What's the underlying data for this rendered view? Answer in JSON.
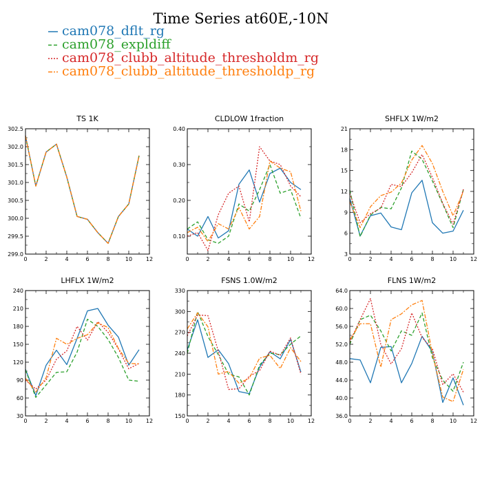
{
  "figure_title": "Time Series at60E,-10N",
  "legend": [
    {
      "label": "cam078_dflt_rg",
      "color": "#1f77b4",
      "dash": "solid"
    },
    {
      "label": "cam078_expldiff",
      "color": "#2ca02c",
      "dash": "dash"
    },
    {
      "label": "cam078_clubb_altitude_thresholdm_rg",
      "color": "#d62728",
      "dash": "dot"
    },
    {
      "label": "cam078_clubb_altitude_thresholdp_rg",
      "color": "#ff7f0e",
      "dash": "dashdot"
    }
  ],
  "chart_data": [
    {
      "type": "line",
      "title": "TS   1K",
      "x": [
        0,
        1,
        2,
        3,
        4,
        5,
        6,
        7,
        8,
        9,
        10,
        11
      ],
      "xlim": [
        0,
        12
      ],
      "xticks": [
        "0",
        "2",
        "4",
        "6",
        "8",
        "10",
        "12"
      ],
      "ylim": [
        299.0,
        302.5
      ],
      "yticks": [
        "299.0",
        "299.5",
        "300.0",
        "300.5",
        "301.0",
        "301.5",
        "302.0",
        "302.5"
      ],
      "series": [
        {
          "name": "cam078_dflt_rg",
          "values": [
            302.3,
            300.9,
            301.85,
            302.07,
            301.15,
            300.05,
            299.97,
            299.6,
            299.3,
            300.05,
            300.4,
            301.75
          ]
        },
        {
          "name": "cam078_expldiff",
          "values": [
            302.3,
            300.9,
            301.85,
            302.07,
            301.15,
            300.05,
            299.97,
            299.6,
            299.3,
            300.05,
            300.4,
            301.75
          ]
        },
        {
          "name": "cam078_clubb_altitude_thresholdm_rg",
          "values": [
            302.3,
            300.9,
            301.85,
            302.07,
            301.15,
            300.05,
            299.97,
            299.6,
            299.3,
            300.05,
            300.4,
            301.75
          ]
        },
        {
          "name": "cam078_clubb_altitude_thresholdp_rg",
          "values": [
            302.3,
            300.9,
            301.85,
            302.07,
            301.15,
            300.05,
            299.97,
            299.6,
            299.3,
            300.05,
            300.4,
            301.75
          ]
        }
      ]
    },
    {
      "type": "line",
      "title": "CLDLOW   1fraction",
      "x": [
        0,
        1,
        2,
        3,
        4,
        5,
        6,
        7,
        8,
        9,
        10,
        11
      ],
      "xlim": [
        0,
        12
      ],
      "xticks": [
        "0",
        "2",
        "4",
        "6",
        "8",
        "10",
        "12"
      ],
      "ylim": [
        0.05,
        0.4
      ],
      "yticks": [
        "0.10",
        "0.20",
        "0.30",
        "0.40"
      ],
      "ytick_values": [
        0.1,
        0.2,
        0.3,
        0.4
      ],
      "series": [
        {
          "name": "cam078_dflt_rg",
          "values": [
            0.12,
            0.1,
            0.155,
            0.095,
            0.115,
            0.245,
            0.285,
            0.195,
            0.275,
            0.29,
            0.25,
            0.23
          ]
        },
        {
          "name": "cam078_expldiff",
          "values": [
            0.12,
            0.14,
            0.09,
            0.08,
            0.1,
            0.19,
            0.17,
            0.23,
            0.3,
            0.22,
            0.23,
            0.15
          ]
        },
        {
          "name": "cam078_clubb_altitude_thresholdm_rg",
          "values": [
            0.1,
            0.11,
            0.06,
            0.16,
            0.22,
            0.24,
            0.14,
            0.35,
            0.31,
            0.3,
            0.24,
            0.21
          ]
        },
        {
          "name": "cam078_clubb_altitude_thresholdp_rg",
          "values": [
            0.11,
            0.125,
            0.085,
            0.135,
            0.12,
            0.18,
            0.12,
            0.155,
            0.31,
            0.29,
            0.28,
            0.17
          ]
        }
      ]
    },
    {
      "type": "line",
      "title": "SHFLX   1W/m2",
      "x": [
        0,
        1,
        2,
        3,
        4,
        5,
        6,
        7,
        8,
        9,
        10,
        11
      ],
      "xlim": [
        0,
        12
      ],
      "xticks": [
        "0",
        "2",
        "4",
        "6",
        "8",
        "10",
        "12"
      ],
      "ylim": [
        3,
        21
      ],
      "yticks": [
        "3",
        "6",
        "9",
        "12",
        "15",
        "18",
        "21"
      ],
      "series": [
        {
          "name": "cam078_dflt_rg",
          "values": [
            11.0,
            5.6,
            8.5,
            8.9,
            6.9,
            6.5,
            11.8,
            13.6,
            7.5,
            6.0,
            6.3,
            9.3
          ]
        },
        {
          "name": "cam078_expldiff",
          "values": [
            12.2,
            5.5,
            8.6,
            9.7,
            9.5,
            12.5,
            17.8,
            16.6,
            13.5,
            10.2,
            6.8,
            12.3
          ]
        },
        {
          "name": "cam078_clubb_altitude_thresholdm_rg",
          "values": [
            11.7,
            7.5,
            8.8,
            9.6,
            13.0,
            12.7,
            14.7,
            17.3,
            14.0,
            10.3,
            7.3,
            12.3
          ]
        },
        {
          "name": "cam078_clubb_altitude_thresholdp_rg",
          "values": [
            10.5,
            6.8,
            9.8,
            11.4,
            11.9,
            13.2,
            16.5,
            18.6,
            16.0,
            12.0,
            8.5,
            12.0
          ]
        }
      ]
    },
    {
      "type": "line",
      "title": "LHFLX   1W/m2",
      "x": [
        0,
        1,
        2,
        3,
        4,
        5,
        6,
        7,
        8,
        9,
        10,
        11
      ],
      "xlim": [
        0,
        12
      ],
      "xticks": [
        "0",
        "2",
        "4",
        "6",
        "8",
        "10",
        "12"
      ],
      "ylim": [
        30,
        240
      ],
      "yticks": [
        "30",
        "60",
        "90",
        "120",
        "150",
        "180",
        "210",
        "240"
      ],
      "series": [
        {
          "name": "cam078_dflt_rg",
          "values": [
            108,
            64,
            115,
            140,
            116,
            160,
            206,
            210,
            182,
            162,
            115,
            141
          ]
        },
        {
          "name": "cam078_expldiff",
          "values": [
            107,
            61,
            82,
            103,
            104,
            137,
            192,
            180,
            158,
            128,
            90,
            88
          ]
        },
        {
          "name": "cam078_clubb_altitude_thresholdm_rg",
          "values": [
            90,
            75,
            90,
            125,
            139,
            180,
            157,
            188,
            170,
            142,
            109,
            118
          ]
        },
        {
          "name": "cam078_clubb_altitude_thresholdp_rg",
          "values": [
            93,
            70,
            94,
            160,
            150,
            160,
            166,
            186,
            178,
            143,
            118,
            117
          ]
        }
      ]
    },
    {
      "type": "line",
      "title": "FSNS   1.0W/m2",
      "x": [
        0,
        1,
        2,
        3,
        4,
        5,
        6,
        7,
        8,
        9,
        10,
        11
      ],
      "xlim": [
        0,
        12
      ],
      "xticks": [
        "0",
        "2",
        "4",
        "6",
        "8",
        "10",
        "12"
      ],
      "ylim": [
        150,
        330
      ],
      "yticks": [
        "150",
        "180",
        "210",
        "240",
        "270",
        "300",
        "330"
      ],
      "series": [
        {
          "name": "cam078_dflt_rg",
          "values": [
            245,
            288,
            234,
            245,
            225,
            185,
            182,
            220,
            242,
            232,
            260,
            213
          ]
        },
        {
          "name": "cam078_expldiff",
          "values": [
            240,
            300,
            264,
            238,
            210,
            206,
            180,
            223,
            240,
            238,
            253,
            265
          ]
        },
        {
          "name": "cam078_clubb_altitude_thresholdm_rg",
          "values": [
            265,
            295,
            294,
            243,
            188,
            189,
            207,
            215,
            243,
            237,
            262,
            210
          ]
        },
        {
          "name": "cam078_clubb_altitude_thresholdp_rg",
          "values": [
            275,
            298,
            278,
            210,
            214,
            197,
            204,
            233,
            237,
            218,
            248,
            228
          ]
        }
      ]
    },
    {
      "type": "line",
      "title": "FLNS   1W/m2",
      "x": [
        0,
        1,
        2,
        3,
        4,
        5,
        6,
        7,
        8,
        9,
        10,
        11
      ],
      "xlim": [
        0,
        12
      ],
      "xticks": [
        "0",
        "2",
        "4",
        "6",
        "8",
        "10",
        "12"
      ],
      "ylim": [
        36.0,
        64.0
      ],
      "yticks": [
        "36.0",
        "40.0",
        "44.0",
        "48.0",
        "52.0",
        "56.0",
        "60.0",
        "64.0"
      ],
      "series": [
        {
          "name": "cam078_dflt_rg",
          "values": [
            48.8,
            48.5,
            43.4,
            51.3,
            51.5,
            43.4,
            47.7,
            53.8,
            50.3,
            39.0,
            44.5,
            38.4
          ]
        },
        {
          "name": "cam078_expldiff",
          "values": [
            52.0,
            57.5,
            58.5,
            55.0,
            50.5,
            55.0,
            54.0,
            59.0,
            49.0,
            44.0,
            41.5,
            48.0
          ]
        },
        {
          "name": "cam078_clubb_altitude_thresholdm_rg",
          "values": [
            52.5,
            57.5,
            62.2,
            52.0,
            47.6,
            51.0,
            59.0,
            53.5,
            51.0,
            43.0,
            45.4,
            41.3
          ]
        },
        {
          "name": "cam078_clubb_altitude_thresholdp_rg",
          "values": [
            53.0,
            56.6,
            56.6,
            46.9,
            57.5,
            58.8,
            60.8,
            61.8,
            49.9,
            40.2,
            39.2,
            46.4
          ]
        }
      ]
    }
  ]
}
